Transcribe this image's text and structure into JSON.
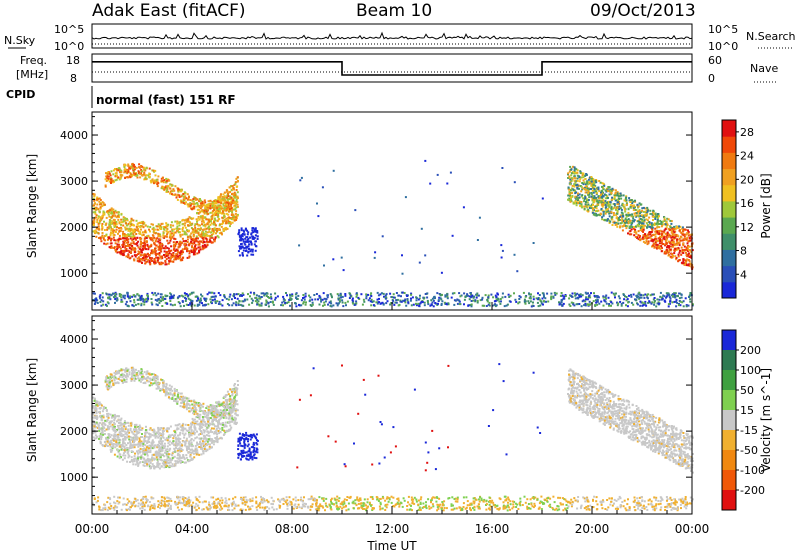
{
  "header": {
    "station": "Adak East (fitACF)",
    "beam": "Beam 10",
    "date": "09/Oct/2013"
  },
  "sky_panel": {
    "left_label": "N.Sky",
    "right_label": "N.Search",
    "left_ticks": [
      "10^5",
      "10^0"
    ],
    "right_ticks": [
      "10^5",
      "10^0"
    ]
  },
  "freq_panel": {
    "left_label_1": "Freq.",
    "left_label_2": "[MHz]",
    "left_ticks": [
      "18",
      "8"
    ],
    "right_label": "Nave",
    "right_ticks": [
      "60",
      "0"
    ],
    "cpid_label": "CPID",
    "cpid_text": "normal (fast) 151 RF",
    "freq_steps": [
      {
        "start_h": 0,
        "end_h": 10,
        "level": 0.72
      },
      {
        "start_h": 10,
        "end_h": 18,
        "level": 0.25
      },
      {
        "start_h": 18,
        "end_h": 24,
        "level": 0.72
      }
    ]
  },
  "colors": {
    "power_scale": [
      "#1a28d8",
      "#2a4fb8",
      "#2f6fa0",
      "#3f8f6a",
      "#5aa850",
      "#9fc83a",
      "#f0c020",
      "#f0a020",
      "#f07a10",
      "#f04808",
      "#e01010"
    ],
    "velocity_scale": [
      "#1a28d8",
      "#2e7a52",
      "#3fa040",
      "#7fd050",
      "#c8c8c8",
      "#f0b030",
      "#f08810",
      "#f05808",
      "#e01010"
    ]
  },
  "chart_data": [
    {
      "type": "heatmap",
      "name": "power",
      "xlabel": "",
      "ylabel": "Slant Range [km]",
      "y_ticks": [
        "1000",
        "2000",
        "3000",
        "4000"
      ],
      "x_ticks": [
        "00:00",
        "04:00",
        "08:00",
        "12:00",
        "16:00",
        "20:00",
        "00:00"
      ],
      "ylim": [
        200,
        4500
      ],
      "colorbar": {
        "label": "Power [dB]",
        "ticks": [
          "4",
          "8",
          "12",
          "16",
          "20",
          "24",
          "28"
        ],
        "range": [
          0,
          30
        ]
      }
    },
    {
      "type": "heatmap",
      "name": "velocity",
      "xlabel": "Time UT",
      "ylabel": "Slant Range [km]",
      "y_ticks": [
        "1000",
        "2000",
        "3000",
        "4000"
      ],
      "x_ticks": [
        "00:00",
        "04:00",
        "08:00",
        "12:00",
        "16:00",
        "20:00",
        "00:00"
      ],
      "ylim": [
        200,
        4500
      ],
      "colorbar": {
        "label": "Velocity [m s^-1]",
        "ticks": [
          "200",
          "100",
          "50",
          "15",
          "-15",
          "-50",
          "-100",
          "-200"
        ],
        "range": [
          -250,
          250
        ]
      }
    }
  ]
}
